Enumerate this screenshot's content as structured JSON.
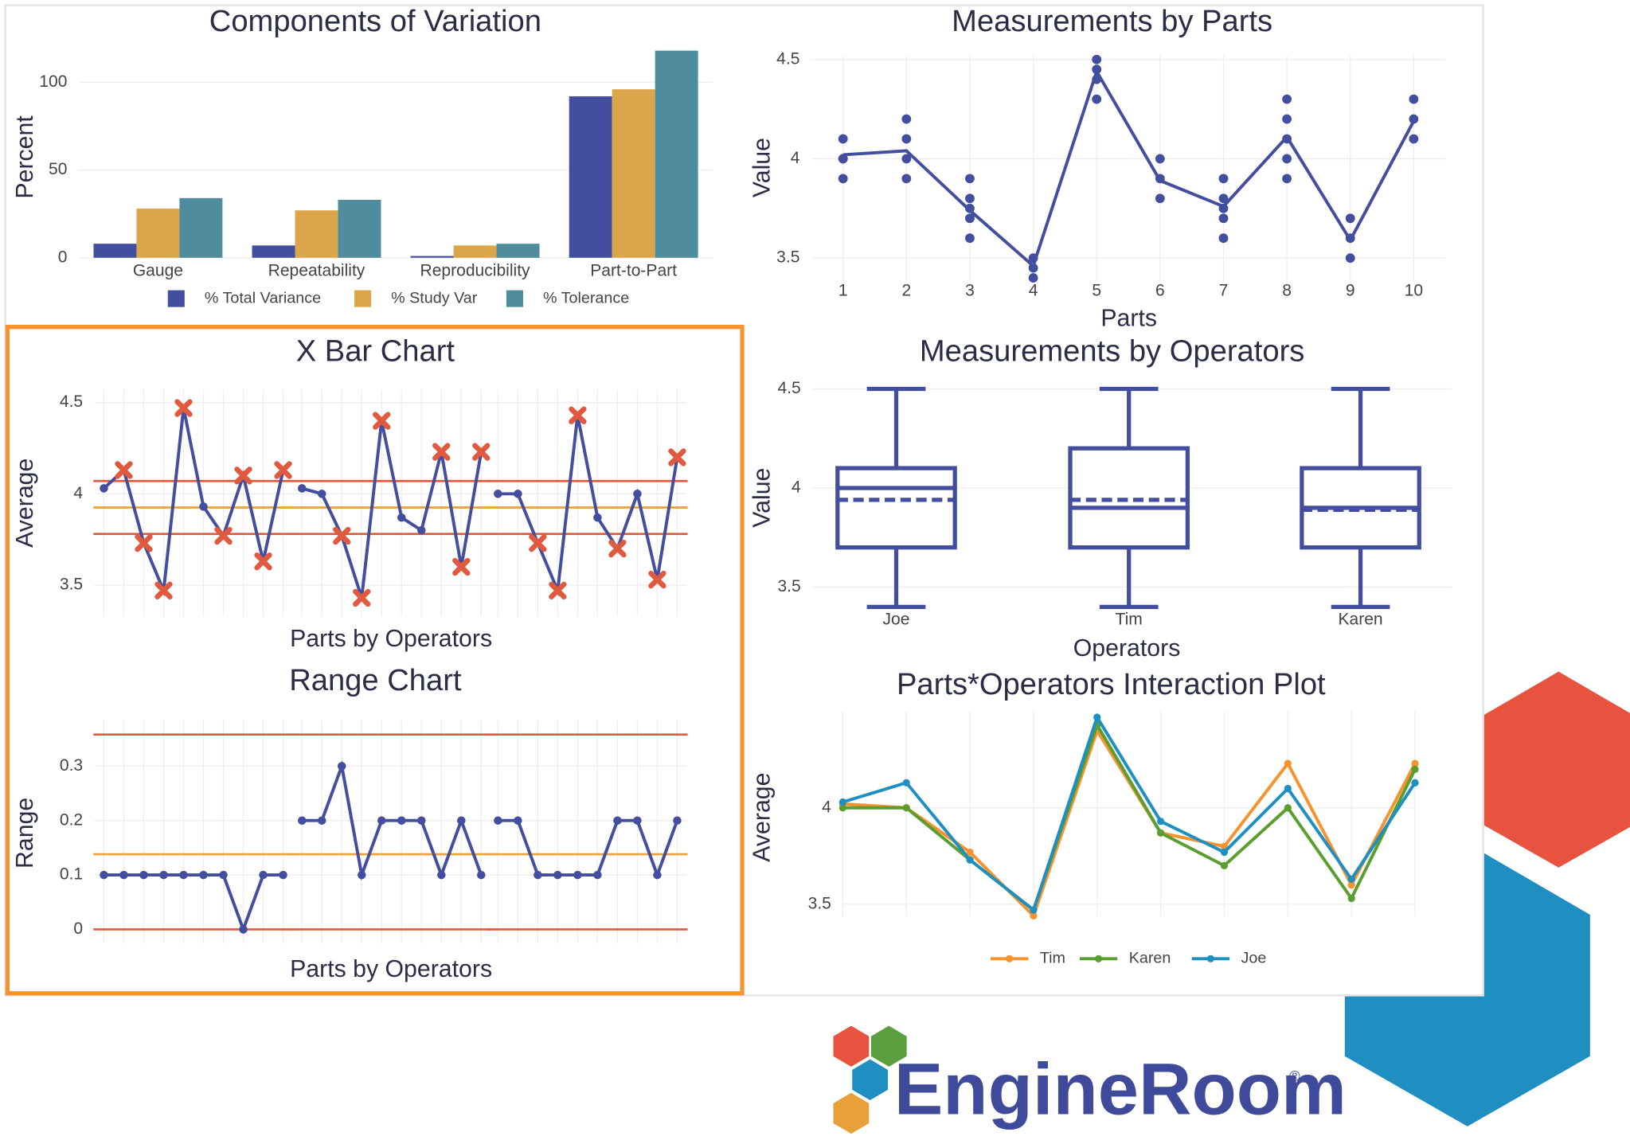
{
  "chart_data": [
    {
      "type": "bar",
      "title": "Components of Variation",
      "ylabel": "Percent",
      "categories": [
        "Gauge",
        "Repeatability",
        "Reproducibility",
        "Part-to-Part"
      ],
      "series": [
        {
          "name": "% Total Variance",
          "color": "#444e9e",
          "values": [
            8,
            7,
            1,
            92
          ]
        },
        {
          "name": "% Study Var",
          "color": "#dba54a",
          "values": [
            28,
            27,
            7,
            96
          ]
        },
        {
          "name": "% Tolerance",
          "color": "#4e8c9e",
          "values": [
            34,
            33,
            8,
            118
          ]
        }
      ],
      "ylim": [
        0,
        120
      ],
      "yticks": [
        0,
        50,
        100
      ],
      "grid": true,
      "legend": "bottom"
    },
    {
      "type": "scatter",
      "title": "Measurements by Parts",
      "xlabel": "Parts",
      "ylabel": "Value",
      "color": "#444e9e",
      "x": [
        1,
        1,
        1,
        1,
        2,
        2,
        2,
        2,
        3,
        3,
        3,
        3,
        3,
        4,
        4,
        4,
        5,
        5,
        5,
        5,
        6,
        6,
        6,
        7,
        7,
        7,
        7,
        7,
        8,
        8,
        8,
        8,
        8,
        9,
        9,
        9,
        10,
        10,
        10
      ],
      "values": [
        4.1,
        4.0,
        4.0,
        3.9,
        4.2,
        4.1,
        4.0,
        3.9,
        3.9,
        3.8,
        3.75,
        3.7,
        3.6,
        3.5,
        3.45,
        3.4,
        4.5,
        4.45,
        4.4,
        4.3,
        4.0,
        3.9,
        3.8,
        3.9,
        3.8,
        3.75,
        3.7,
        3.6,
        4.3,
        4.2,
        4.1,
        4.0,
        3.9,
        3.7,
        3.6,
        3.5,
        4.3,
        4.2,
        4.1
      ],
      "mean_line": {
        "x": [
          1,
          2,
          3,
          4,
          5,
          6,
          7,
          8,
          9,
          10
        ],
        "values": [
          4.02,
          4.04,
          3.74,
          3.46,
          4.44,
          3.89,
          3.76,
          4.11,
          3.59,
          4.19
        ]
      },
      "xlim": [
        0.5,
        10.5
      ],
      "xticks": [
        1,
        2,
        3,
        4,
        5,
        6,
        7,
        8,
        9,
        10
      ],
      "ylim": [
        3.38,
        4.52
      ],
      "yticks": [
        3.5,
        4,
        4.5
      ],
      "grid": true
    },
    {
      "type": "control",
      "title": "X Bar Chart",
      "xlabel": "Parts by Operators",
      "ylabel": "Average",
      "color": "#444e9e",
      "series": [
        {
          "values": [
            4.03,
            4.13,
            3.73,
            3.47,
            4.47,
            3.93,
            3.77,
            4.1,
            3.63,
            4.13
          ]
        },
        {
          "values": [
            4.03,
            4.0,
            3.77,
            3.43,
            4.4,
            3.87,
            3.8,
            4.23,
            3.6,
            4.23
          ]
        },
        {
          "values": [
            4.0,
            4.0,
            3.73,
            3.47,
            4.43,
            3.87,
            3.7,
            4.0,
            3.53,
            4.2
          ]
        }
      ],
      "limits": {
        "ucl": 4.07,
        "cl": 3.925,
        "lcl": 3.78
      },
      "limit_color": "#e05a3f",
      "center_color": "#e8a13a",
      "ylim": [
        3.33,
        4.57
      ],
      "yticks": [
        3.5,
        4,
        4.5
      ],
      "grid": true
    },
    {
      "type": "control",
      "title": "Range Chart",
      "xlabel": "Parts by Operators",
      "ylabel": "Range",
      "color": "#444e9e",
      "series": [
        {
          "values": [
            0.1,
            0.1,
            0.1,
            0.1,
            0.1,
            0.1,
            0.1,
            0,
            0.1,
            0.1
          ]
        },
        {
          "values": [
            0.2,
            0.2,
            0.3,
            0.1,
            0.2,
            0.2,
            0.2,
            0.1,
            0.2,
            0.1
          ]
        },
        {
          "values": [
            0.2,
            0.2,
            0.1,
            0.1,
            0.1,
            0.1,
            0.2,
            0.2,
            0.1,
            0.2
          ]
        }
      ],
      "limits": {
        "ucl": 0.358,
        "cl": 0.138,
        "lcl": 0
      },
      "limit_color": "#e05a3f",
      "center_color": "#e8a13a",
      "ylim": [
        -0.025,
        0.385
      ],
      "yticks": [
        0,
        0.1,
        0.2,
        0.3
      ],
      "grid": true
    },
    {
      "type": "box",
      "title": "Measurements by Operators",
      "xlabel": "Operators",
      "ylabel": "Value",
      "color": "#444e9e",
      "categories": [
        "Joe",
        "Tim",
        "Karen"
      ],
      "boxes": [
        {
          "min": 3.4,
          "q1": 3.7,
          "median": 4.0,
          "mean": 3.94,
          "q3": 4.1,
          "max": 4.5
        },
        {
          "min": 3.4,
          "q1": 3.7,
          "median": 3.9,
          "mean": 3.94,
          "q3": 4.2,
          "max": 4.5
        },
        {
          "min": 3.4,
          "q1": 3.7,
          "median": 3.9,
          "mean": 3.89,
          "q3": 4.1,
          "max": 4.5
        }
      ],
      "ylim": [
        3.38,
        4.58
      ],
      "yticks": [
        3.5,
        4,
        4.5
      ],
      "grid": true
    },
    {
      "type": "line",
      "title": "Parts*Operators Interaction Plot",
      "ylabel": "Average",
      "x": [
        1,
        2,
        3,
        4,
        5,
        6,
        7,
        8,
        9,
        10
      ],
      "xlim": [
        1,
        10
      ],
      "series": [
        {
          "name": "Tim",
          "color": "#f7932f",
          "values": [
            4.02,
            4.0,
            3.77,
            3.44,
            4.4,
            3.87,
            3.8,
            4.23,
            3.6,
            4.23
          ]
        },
        {
          "name": "Karen",
          "color": "#5a9e2f",
          "values": [
            4.0,
            4.0,
            3.73,
            3.47,
            4.43,
            3.87,
            3.7,
            4.0,
            3.53,
            4.2
          ]
        },
        {
          "name": "Joe",
          "color": "#1e8fc0",
          "values": [
            4.03,
            4.13,
            3.73,
            3.47,
            4.47,
            3.93,
            3.77,
            4.1,
            3.63,
            4.13
          ]
        }
      ],
      "ylim": [
        3.44,
        4.5
      ],
      "yticks": [
        3.5,
        4
      ],
      "grid": true,
      "legend": "bottom"
    }
  ],
  "logo": {
    "text": "EngineRoom",
    "mark": "®"
  }
}
